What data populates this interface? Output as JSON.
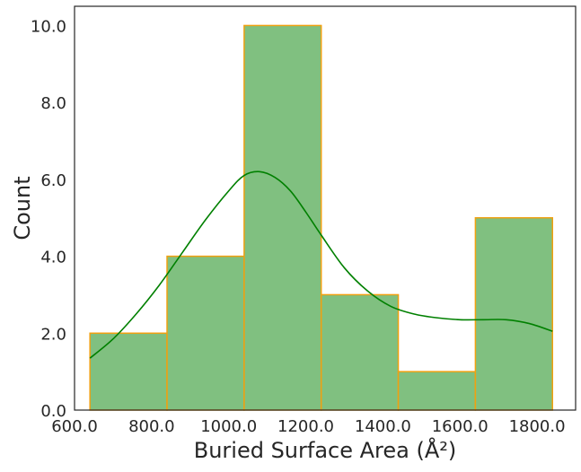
{
  "chart_data": {
    "type": "bar",
    "subtype": "histogram",
    "xlabel": "Buried Surface Area (Å²)",
    "ylabel": "Count",
    "xlim": [
      600,
      1900
    ],
    "ylim": [
      0,
      10.5
    ],
    "xticks": [
      600,
      800,
      1000,
      1200,
      1400,
      1600,
      1800
    ],
    "xtick_labels": [
      "600.0",
      "800.0",
      "1000.0",
      "1200.0",
      "1400.0",
      "1600.0",
      "1800.0"
    ],
    "yticks": [
      0,
      2,
      4,
      6,
      8,
      10
    ],
    "ytick_labels": [
      "0.0",
      "2.0",
      "4.0",
      "6.0",
      "8.0",
      "10.0"
    ],
    "bins": [
      {
        "x0": 640,
        "x1": 840,
        "count": 2
      },
      {
        "x0": 840,
        "x1": 1040,
        "count": 4
      },
      {
        "x0": 1040,
        "x1": 1240,
        "count": 10
      },
      {
        "x0": 1240,
        "x1": 1440,
        "count": 3
      },
      {
        "x0": 1440,
        "x1": 1640,
        "count": 1
      },
      {
        "x0": 1640,
        "x1": 1840,
        "count": 5
      }
    ],
    "kde": {
      "x": [
        640,
        700,
        760,
        820,
        880,
        940,
        1000,
        1040,
        1080,
        1120,
        1160,
        1200,
        1240,
        1300,
        1360,
        1420,
        1480,
        1540,
        1600,
        1660,
        1720,
        1780,
        1840
      ],
      "y": [
        1.35,
        1.85,
        2.5,
        3.25,
        4.1,
        4.95,
        5.7,
        6.1,
        6.2,
        6.05,
        5.7,
        5.15,
        4.55,
        3.7,
        3.1,
        2.7,
        2.5,
        2.4,
        2.35,
        2.35,
        2.35,
        2.25,
        2.05
      ]
    },
    "grid": false,
    "legend": "none"
  },
  "colors": {
    "bar_fill": "#80c080",
    "bar_edge": "#f0a010",
    "kde_line": "#008000",
    "axes": "#262626",
    "text": "#262626"
  }
}
